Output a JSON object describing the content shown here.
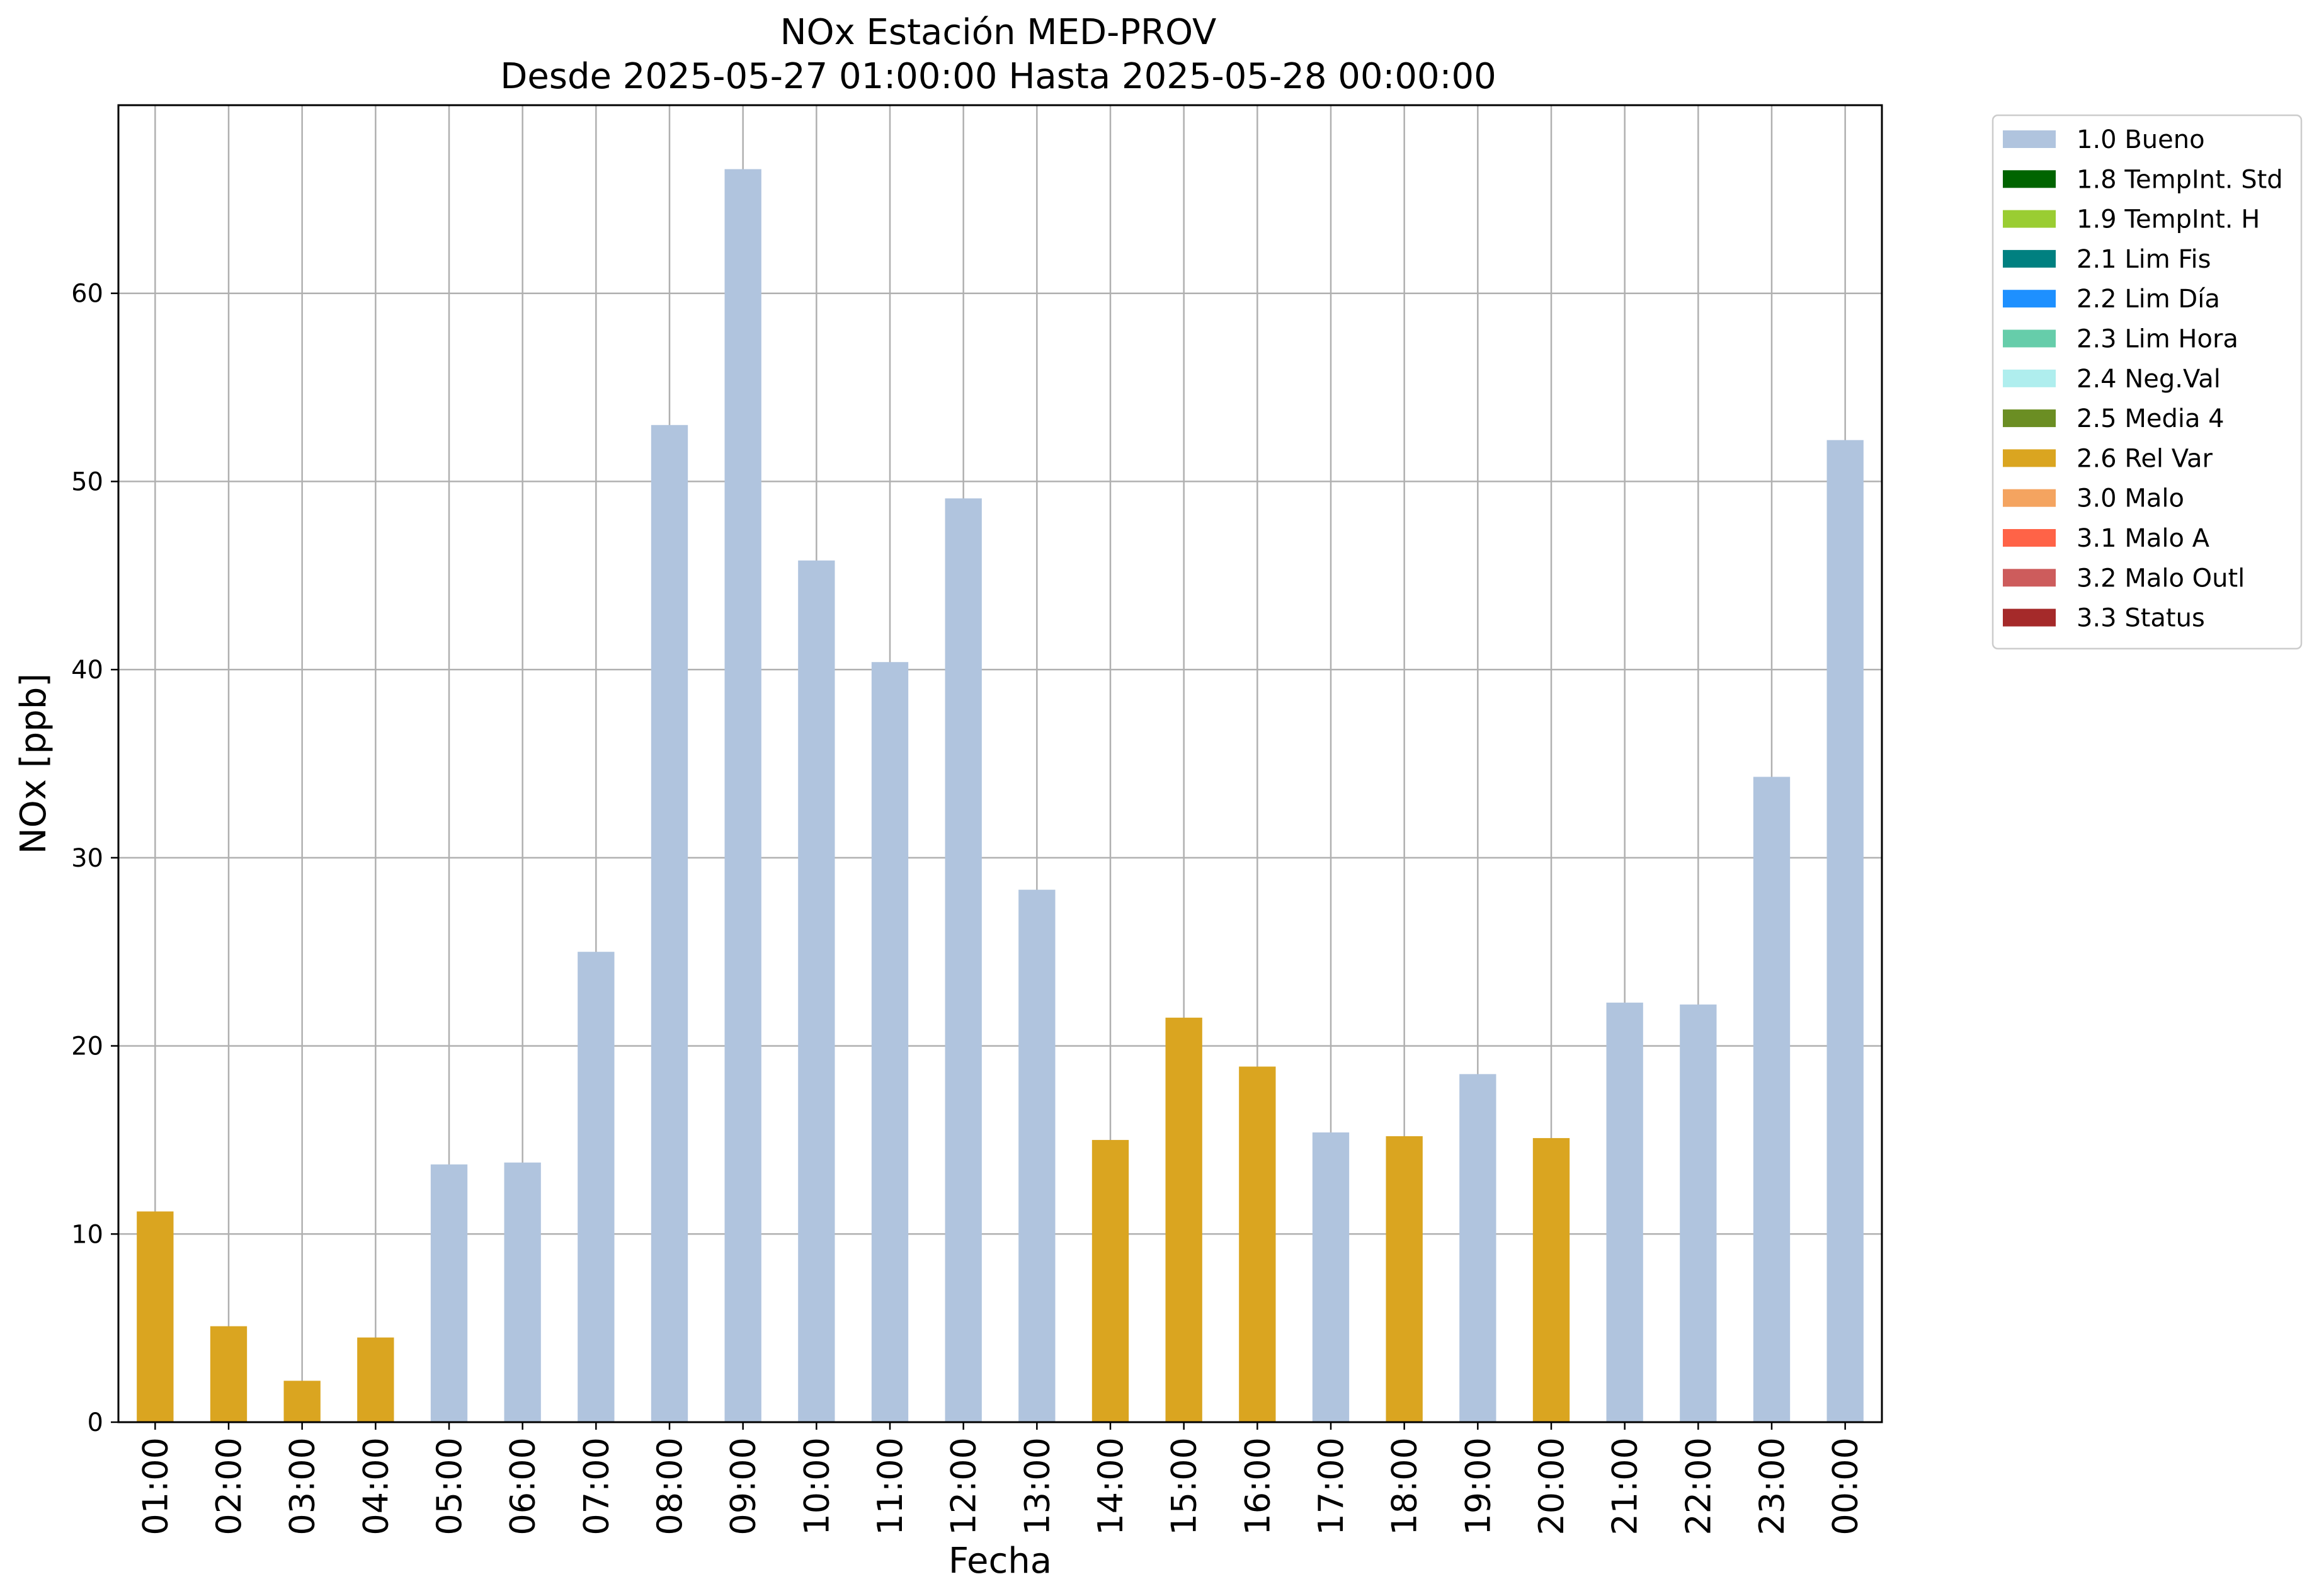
{
  "chart_data": {
    "type": "bar",
    "title": "NOx Estación MED-PROV",
    "subtitle": "Desde 2025-05-27 01:00:00 Hasta 2025-05-28 00:00:00",
    "xlabel": "Fecha",
    "ylabel": "NOx [ppb]",
    "ylim": [
      0,
      70
    ],
    "yticks": [
      0,
      10,
      20,
      30,
      40,
      50,
      60
    ],
    "grid": true,
    "legend_position": "outside-right",
    "categories": [
      "01:00",
      "02:00",
      "03:00",
      "04:00",
      "05:00",
      "06:00",
      "07:00",
      "08:00",
      "09:00",
      "10:00",
      "11:00",
      "12:00",
      "13:00",
      "14:00",
      "15:00",
      "16:00",
      "17:00",
      "18:00",
      "19:00",
      "20:00",
      "21:00",
      "22:00",
      "23:00",
      "00:00"
    ],
    "values": [
      11.2,
      5.1,
      2.2,
      4.5,
      13.7,
      13.8,
      25.0,
      53.0,
      66.6,
      45.8,
      40.4,
      49.1,
      28.3,
      15.0,
      21.5,
      18.9,
      15.4,
      15.2,
      18.5,
      15.1,
      22.3,
      22.2,
      34.3,
      52.2
    ],
    "flags": [
      "2.6 Rel Var",
      "2.6 Rel Var",
      "2.6 Rel Var",
      "2.6 Rel Var",
      "1.0 Bueno",
      "1.0 Bueno",
      "1.0 Bueno",
      "1.0 Bueno",
      "1.0 Bueno",
      "1.0 Bueno",
      "1.0 Bueno",
      "1.0 Bueno",
      "1.0 Bueno",
      "2.6 Rel Var",
      "2.6 Rel Var",
      "2.6 Rel Var",
      "1.0 Bueno",
      "2.6 Rel Var",
      "1.0 Bueno",
      "2.6 Rel Var",
      "1.0 Bueno",
      "1.0 Bueno",
      "1.0 Bueno",
      "1.0 Bueno"
    ],
    "legend": [
      {
        "label": "1.0 Bueno",
        "color": "#b0c4de"
      },
      {
        "label": "1.8 TempInt. Std",
        "color": "#006400"
      },
      {
        "label": "1.9 TempInt. H",
        "color": "#9acd32"
      },
      {
        "label": "2.1 Lim Fis",
        "color": "#008080"
      },
      {
        "label": "2.2 Lim Día",
        "color": "#1e90ff"
      },
      {
        "label": "2.3 Lim Hora",
        "color": "#66cdaa"
      },
      {
        "label": "2.4 Neg.Val",
        "color": "#afeeee"
      },
      {
        "label": "2.5 Media 4",
        "color": "#6b8e23"
      },
      {
        "label": "2.6 Rel Var",
        "color": "#daa520"
      },
      {
        "label": "3.0 Malo",
        "color": "#f4a460"
      },
      {
        "label": "3.1 Malo A",
        "color": "#ff6347"
      },
      {
        "label": "3.2 Malo Outl",
        "color": "#cd5c5c"
      },
      {
        "label": "3.3 Status",
        "color": "#a52a2a"
      }
    ]
  }
}
